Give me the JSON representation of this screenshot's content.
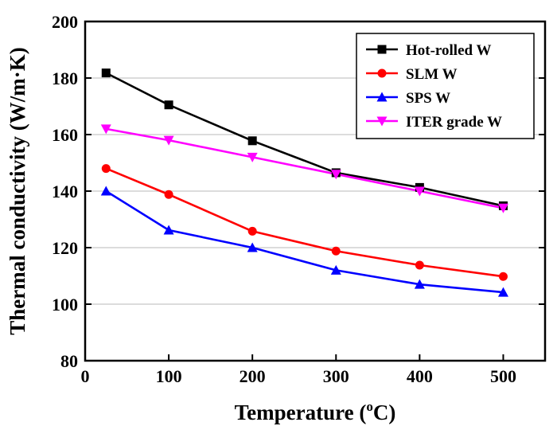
{
  "chart_data": {
    "type": "line",
    "xlabel": "Temperature (",
    "xlabel_sup": "o",
    "xlabel_end": "C)",
    "ylabel": "Thermal conductivity (W/m·K)",
    "xlim": [
      0,
      550
    ],
    "ylim": [
      80,
      200
    ],
    "xticks": [
      0,
      100,
      200,
      300,
      400,
      500
    ],
    "yticks": [
      80,
      100,
      120,
      140,
      160,
      180,
      200
    ],
    "grid": "horizontal",
    "legend_position": "top-right",
    "series": [
      {
        "name": "Hot-rolled W",
        "color": "#000000",
        "marker": "square",
        "x": [
          25,
          100,
          200,
          300,
          400,
          500
        ],
        "y": [
          181.8,
          170.5,
          157.8,
          146.5,
          141.3,
          134.8
        ]
      },
      {
        "name": "SLM W",
        "color": "#ff0000",
        "marker": "circle",
        "x": [
          25,
          100,
          200,
          300,
          400,
          500
        ],
        "y": [
          148,
          138.8,
          125.8,
          118.8,
          113.8,
          109.8
        ]
      },
      {
        "name": "SPS W",
        "color": "#0000ff",
        "marker": "triangle-up",
        "x": [
          25,
          100,
          200,
          300,
          400,
          500
        ],
        "y": [
          140,
          126.2,
          120,
          112,
          107,
          104.2
        ]
      },
      {
        "name": "ITER grade W",
        "color": "#ff00ff",
        "marker": "triangle-down",
        "x": [
          25,
          100,
          200,
          300,
          400,
          500
        ],
        "y": [
          162,
          158,
          152,
          146,
          140,
          134
        ]
      }
    ]
  }
}
